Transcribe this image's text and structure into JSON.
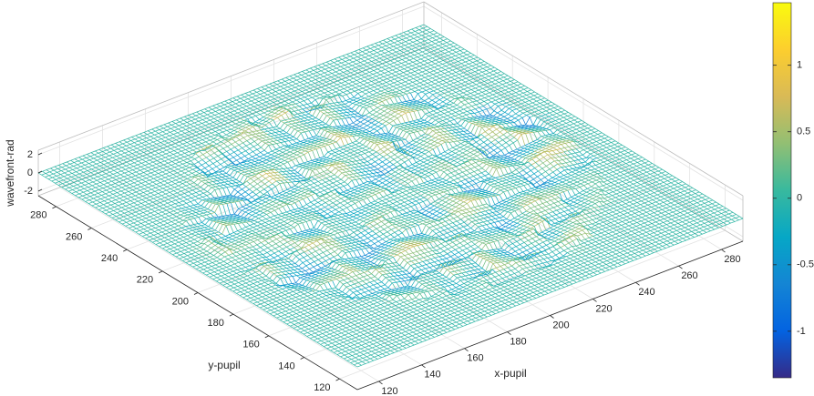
{
  "chart_data": {
    "type": "surface",
    "xlabel": "x-pupil",
    "ylabel": "y-pupil",
    "zlabel": "wavefront-rad",
    "xlim": [
      110,
      290
    ],
    "xticks": [
      120,
      140,
      160,
      180,
      200,
      220,
      240,
      260,
      280
    ],
    "ylim": [
      110,
      290
    ],
    "yticks": [
      120,
      140,
      160,
      180,
      200,
      220,
      240,
      260,
      280
    ],
    "zlim": [
      -2.5,
      2.5
    ],
    "zticks": [
      -2,
      0,
      2
    ],
    "grid": true,
    "colormap": "parula",
    "colorbar": {
      "clim": [
        -1.35,
        1.47
      ],
      "ticks": [
        -1,
        -0.5,
        0,
        0.5,
        1
      ]
    }
  }
}
